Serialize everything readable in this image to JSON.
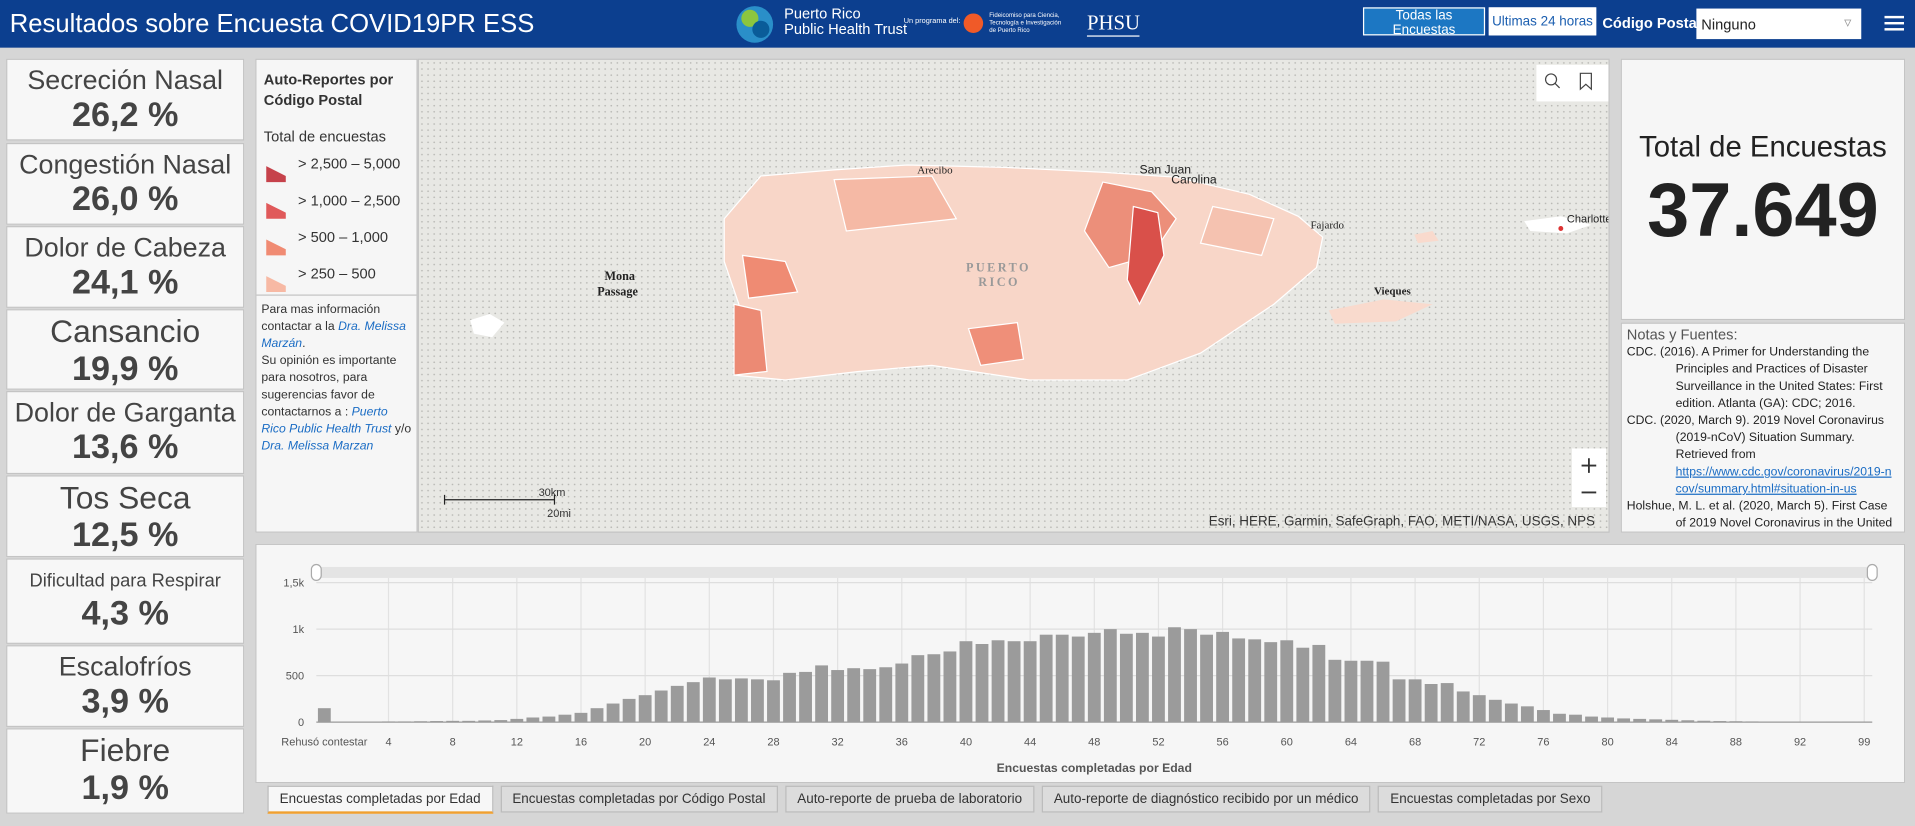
{
  "header": {
    "title": "Resultados sobre Encuesta COVID19PR ESS",
    "logo_trust": [
      "Puerto Rico",
      "Public Health Trust"
    ],
    "program_label": "Un programa del:",
    "logo_fideicomiso": [
      "Fideicomiso para Ciencia,",
      "Tecnología e Investigación",
      "de Puerto Rico"
    ],
    "logo_phsu": "PHSU",
    "buttons": [
      "Todas las Encuestas",
      "Ultimas 24 horas"
    ],
    "zip_label": "Código Postal",
    "zip_value": "Ninguno"
  },
  "symptoms": [
    {
      "name": "Secreción Nasal",
      "value": "26,2 %"
    },
    {
      "name": "Congestión Nasal",
      "value": "26,0 %"
    },
    {
      "name": "Dolor de Cabeza",
      "value": "24,1 %"
    },
    {
      "name": "Cansancio",
      "value": "19,9 %"
    },
    {
      "name": "Dolor de Garganta",
      "value": "13,6 %"
    },
    {
      "name": "Tos Seca",
      "value": "12,5 %"
    },
    {
      "name": "Dificultad para Respirar",
      "value": "4,3 %"
    },
    {
      "name": "Escalofríos",
      "value": "3,9 %"
    },
    {
      "name": "Fiebre",
      "value": "1,9 %"
    }
  ],
  "legend": {
    "title": "Auto-Reportes por Código Postal",
    "subtitle": "Total de encuestas",
    "items": [
      "> 2,500 – 5,000",
      "> 1,000 – 2,500",
      "> 500 – 1,000",
      "> 250 – 500"
    ],
    "info": [
      [
        {
          "t": "Para mas información contactar a la "
        },
        {
          "link": "Dra. Melissa Marzán"
        },
        {
          "t": "."
        }
      ],
      [
        {
          "t": "Su opinión es importante para nosotros, para sugerencias favor de contactarnos a : "
        },
        {
          "link": "Puerto Rico Public Health Trust"
        },
        {
          "t": " y/o "
        },
        {
          "link": "Dra. Melissa Marzan"
        }
      ]
    ]
  },
  "map": {
    "labels": [
      "Arecibo",
      "San Juan",
      "Carolina",
      "Fajardo",
      "PUERTO",
      "RICO",
      "Mona",
      "Passage",
      "Vieques",
      "Charlotte A"
    ],
    "scale": [
      "30km",
      "20mi"
    ],
    "attribution": "Esri, HERE, Garmin, SafeGraph, FAO, METI/NASA, USGS, NPS"
  },
  "total": {
    "label": "Total de Encuestas",
    "value": "37.649"
  },
  "notes": {
    "title": "Notas y Fuentes:",
    "items": [
      {
        "text": "CDC. (2016). A Primer for Understanding the Principles and Practices of Disaster Surveillance in the United States: First edition. Atlanta (GA): CDC; 2016."
      },
      {
        "text": "CDC. (2020, March 9). 2019 Novel Coronavirus (2019-nCoV) Situation Summary. Retrieved from",
        "link": "https://www.cdc.gov/coronavirus/2019-ncov/summary.html#situation-in-us"
      },
      {
        "text": "Holshue, M. L. et al. (2020, March 5). First Case of 2019 Novel Coronavirus in the United"
      }
    ]
  },
  "chart_data": {
    "type": "bar",
    "x_label": "Encuestas completadas por Edad",
    "color": "#9b9b9b",
    "categories": [
      "Rehusó contestar",
      null,
      null,
      null,
      "4",
      null,
      null,
      null,
      "8",
      null,
      null,
      null,
      "12",
      null,
      null,
      null,
      "16",
      null,
      null,
      null,
      "20",
      null,
      null,
      null,
      "24",
      null,
      null,
      null,
      "28",
      null,
      null,
      null,
      "32",
      null,
      null,
      null,
      "36",
      null,
      null,
      null,
      "40",
      null,
      null,
      null,
      "44",
      null,
      null,
      null,
      "48",
      null,
      null,
      null,
      "52",
      null,
      null,
      null,
      "56",
      null,
      null,
      null,
      "60",
      null,
      null,
      null,
      "64",
      null,
      null,
      null,
      "68",
      null,
      null,
      null,
      "72",
      null,
      null,
      null,
      "76",
      null,
      null,
      null,
      "80",
      null,
      null,
      null,
      "84",
      null,
      null,
      null,
      "88",
      null,
      null,
      null,
      "92",
      null,
      null,
      null,
      "99"
    ],
    "values": [
      150,
      5,
      5,
      5,
      8,
      8,
      10,
      12,
      14,
      14,
      18,
      22,
      35,
      50,
      60,
      80,
      100,
      150,
      200,
      250,
      290,
      340,
      390,
      430,
      480,
      460,
      470,
      460,
      450,
      530,
      540,
      610,
      560,
      580,
      570,
      590,
      630,
      720,
      730,
      760,
      870,
      840,
      880,
      870,
      870,
      940,
      940,
      920,
      960,
      1000,
      950,
      960,
      920,
      1020,
      1000,
      940,
      970,
      900,
      890,
      860,
      880,
      800,
      830,
      670,
      660,
      660,
      650,
      460,
      460,
      410,
      420,
      330,
      290,
      240,
      200,
      170,
      130,
      90,
      80,
      60,
      50,
      40,
      35,
      30,
      25,
      20,
      15,
      12,
      10,
      8,
      6,
      5,
      4,
      3,
      2,
      2,
      2
    ],
    "ylim": [
      0,
      1550
    ],
    "yticks": [
      0,
      500,
      {
        "value": 1000,
        "label": "1k"
      },
      {
        "value": 1500,
        "label": "1,5k"
      }
    ],
    "grid": true
  },
  "tabs": [
    "Encuestas completadas por Edad",
    "Encuestas completadas por Código Postal",
    "Auto-reporte de prueba de laboratorio",
    "Auto-reporte de diagnóstico recibido por un médico",
    "Encuestas completadas por Sexo"
  ]
}
